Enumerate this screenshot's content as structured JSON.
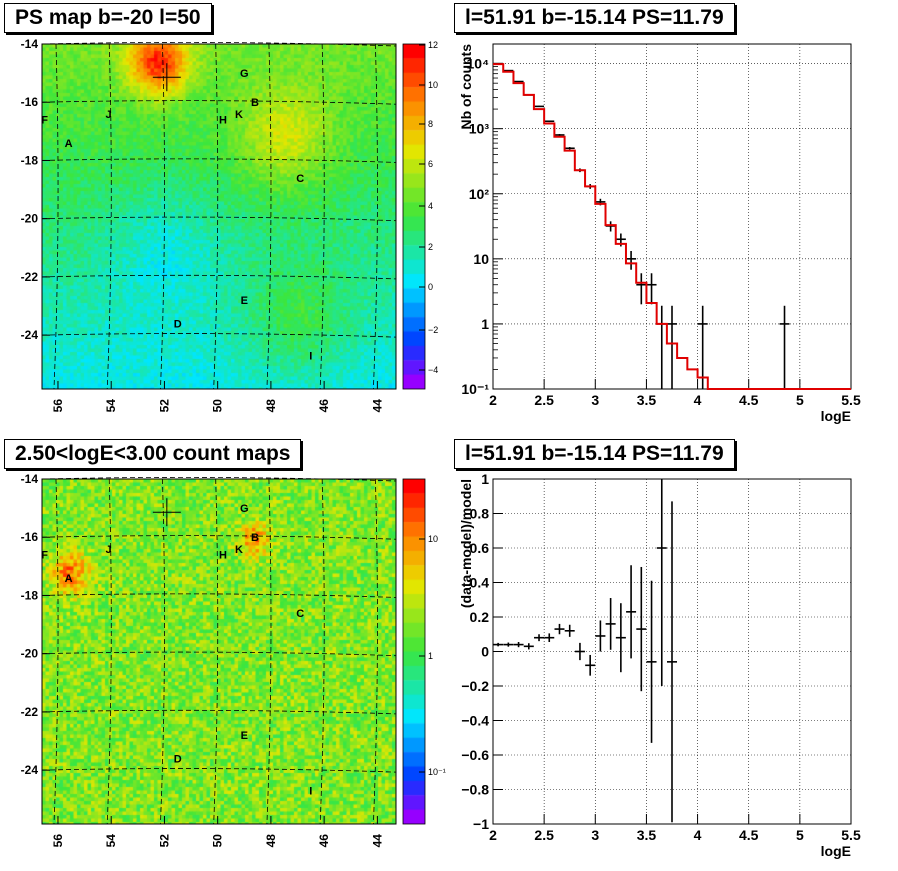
{
  "panels": {
    "tl_title": "PS map b=-20 l=50",
    "tr_title": "l=51.91 b=-15.14 PS=11.79",
    "bl_title": "2.50<logE<3.00 count maps",
    "br_title": "l=51.91 b=-15.14 PS=11.79"
  },
  "maps": {
    "x_ticks": [
      "56",
      "54",
      "52",
      "50",
      "48",
      "46",
      "44"
    ],
    "y_ticks": [
      "-14",
      "-16",
      "-18",
      "-20",
      "-22",
      "-24"
    ],
    "sources": [
      {
        "id": "A",
        "l": 55.6,
        "b": -17.4
      },
      {
        "id": "B",
        "l": 48.6,
        "b": -16.0
      },
      {
        "id": "C",
        "l": 46.9,
        "b": -18.6
      },
      {
        "id": "D",
        "l": 51.5,
        "b": -23.6
      },
      {
        "id": "E",
        "l": 49.0,
        "b": -22.8
      },
      {
        "id": "F",
        "l": 56.5,
        "b": -16.6
      },
      {
        "id": "G",
        "l": 49.0,
        "b": -15.0
      },
      {
        "id": "H",
        "l": 49.8,
        "b": -16.6
      },
      {
        "id": "I",
        "l": 46.5,
        "b": -24.7
      },
      {
        "id": "J",
        "l": 54.1,
        "b": -16.4
      },
      {
        "id": "K",
        "l": 49.2,
        "b": -16.4
      }
    ],
    "ps_colorbar_ticks": [
      "12",
      "10",
      "8",
      "6",
      "4",
      "2",
      "0",
      "−2",
      "−4"
    ],
    "count_colorbar_ticks": [
      "10",
      "1",
      "10⁻¹"
    ]
  },
  "chart_data": [
    {
      "type": "line",
      "title": "l=51.91 b=-15.14 PS=11.79",
      "xlabel": "logE",
      "ylabel": "Nb of counts",
      "xlim": [
        2,
        5.5
      ],
      "ylim": [
        0.1,
        20000
      ],
      "yscale": "log",
      "x_ticks": [
        "2",
        "2.5",
        "3",
        "3.5",
        "4",
        "4.5",
        "5",
        "5.5"
      ],
      "y_ticks": [
        "10⁴",
        "10³",
        "10²",
        "10",
        "1",
        "10⁻¹"
      ],
      "grid": true,
      "series": [
        {
          "kind": "points",
          "color": "#000000",
          "x": [
            2.05,
            2.15,
            2.25,
            2.35,
            2.45,
            2.55,
            2.65,
            2.75,
            2.85,
            2.95,
            3.05,
            3.15,
            3.25,
            3.35,
            3.45,
            3.55,
            3.65,
            3.75,
            4.05,
            4.85
          ],
          "y": [
            10000,
            7800,
            5300,
            3300,
            2200,
            1300,
            800,
            500,
            230,
            130,
            75,
            32,
            20,
            10,
            4,
            4,
            1,
            1,
            1,
            1
          ],
          "yerr": [
            100,
            88,
            73,
            57,
            47,
            36,
            28,
            22,
            15,
            11,
            8.7,
            5.7,
            4.5,
            3.2,
            2,
            2,
            0.9,
            0.9,
            0.9,
            0.9
          ]
        },
        {
          "kind": "step",
          "color": "#e00000",
          "x_edges": [
            2.0,
            2.1,
            2.2,
            2.3,
            2.4,
            2.5,
            2.6,
            2.7,
            2.8,
            2.9,
            3.0,
            3.1,
            3.2,
            3.3,
            3.4,
            3.5,
            3.6,
            3.7,
            3.8,
            3.9,
            4.0,
            4.1,
            5.5
          ],
          "y": [
            9800,
            7500,
            5000,
            3300,
            2000,
            1200,
            750,
            460,
            230,
            130,
            70,
            33,
            17,
            8.5,
            4.3,
            2.1,
            1.0,
            0.5,
            0.3,
            0.2,
            0.15,
            0.1
          ]
        }
      ]
    },
    {
      "type": "scatter",
      "title": "l=51.91 b=-15.14 PS=11.79",
      "xlabel": "logE",
      "ylabel": "(data-model)/model",
      "xlim": [
        2,
        5.5
      ],
      "ylim": [
        -1,
        1
      ],
      "x_ticks": [
        "2",
        "2.5",
        "3",
        "3.5",
        "4",
        "4.5",
        "5",
        "5.5"
      ],
      "y_ticks": [
        "1",
        "0.8",
        "0.6",
        "0.4",
        "0.2",
        "0",
        "−0.2",
        "−0.4",
        "−0.6",
        "−0.8",
        "−1"
      ],
      "grid": true,
      "series": [
        {
          "color": "#000000",
          "x": [
            2.05,
            2.15,
            2.25,
            2.35,
            2.45,
            2.55,
            2.65,
            2.75,
            2.85,
            2.95,
            3.05,
            3.15,
            3.25,
            3.35,
            3.45,
            3.55,
            3.65,
            3.75
          ],
          "y": [
            0.04,
            0.04,
            0.04,
            0.03,
            0.08,
            0.08,
            0.13,
            0.12,
            0.0,
            -0.08,
            0.09,
            0.16,
            0.08,
            0.23,
            0.13,
            -0.06,
            0.6,
            -0.06
          ],
          "yerr": [
            0.01,
            0.012,
            0.015,
            0.018,
            0.02,
            0.025,
            0.03,
            0.035,
            0.05,
            0.06,
            0.09,
            0.15,
            0.2,
            0.27,
            0.36,
            0.47,
            0.8,
            0.93
          ]
        }
      ]
    }
  ]
}
